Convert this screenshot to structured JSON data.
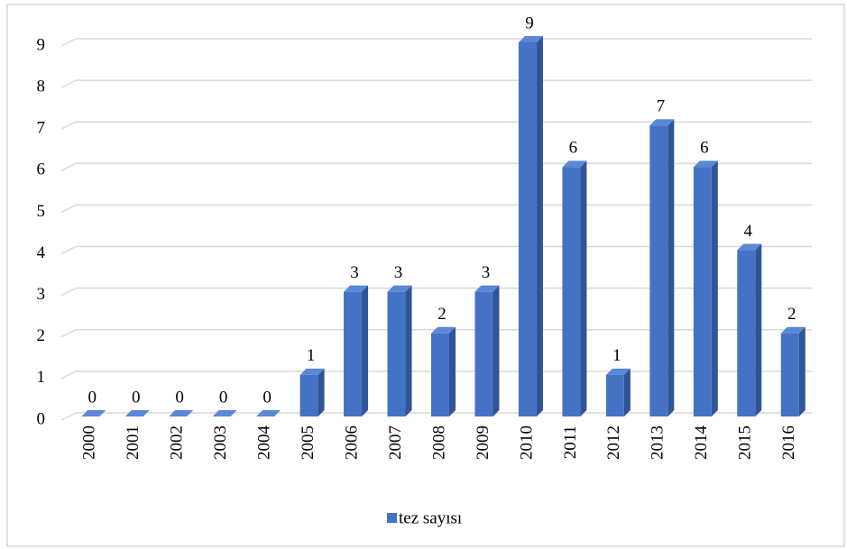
{
  "chart_data": {
    "type": "bar",
    "categories": [
      "2000",
      "2001",
      "2002",
      "2003",
      "2004",
      "2005",
      "2006",
      "2007",
      "2008",
      "2009",
      "2010",
      "2011",
      "2012",
      "2013",
      "2014",
      "2015",
      "2016"
    ],
    "series": [
      {
        "name": "tez sayısı",
        "color": "#4472c4",
        "values": [
          0,
          0,
          0,
          0,
          0,
          1,
          3,
          3,
          2,
          3,
          9,
          6,
          1,
          7,
          6,
          4,
          2
        ]
      }
    ],
    "ylim": [
      0,
      9
    ],
    "yticks": [
      0,
      1,
      2,
      3,
      4,
      5,
      6,
      7,
      8,
      9
    ],
    "grid": true,
    "legend": "bottom"
  }
}
